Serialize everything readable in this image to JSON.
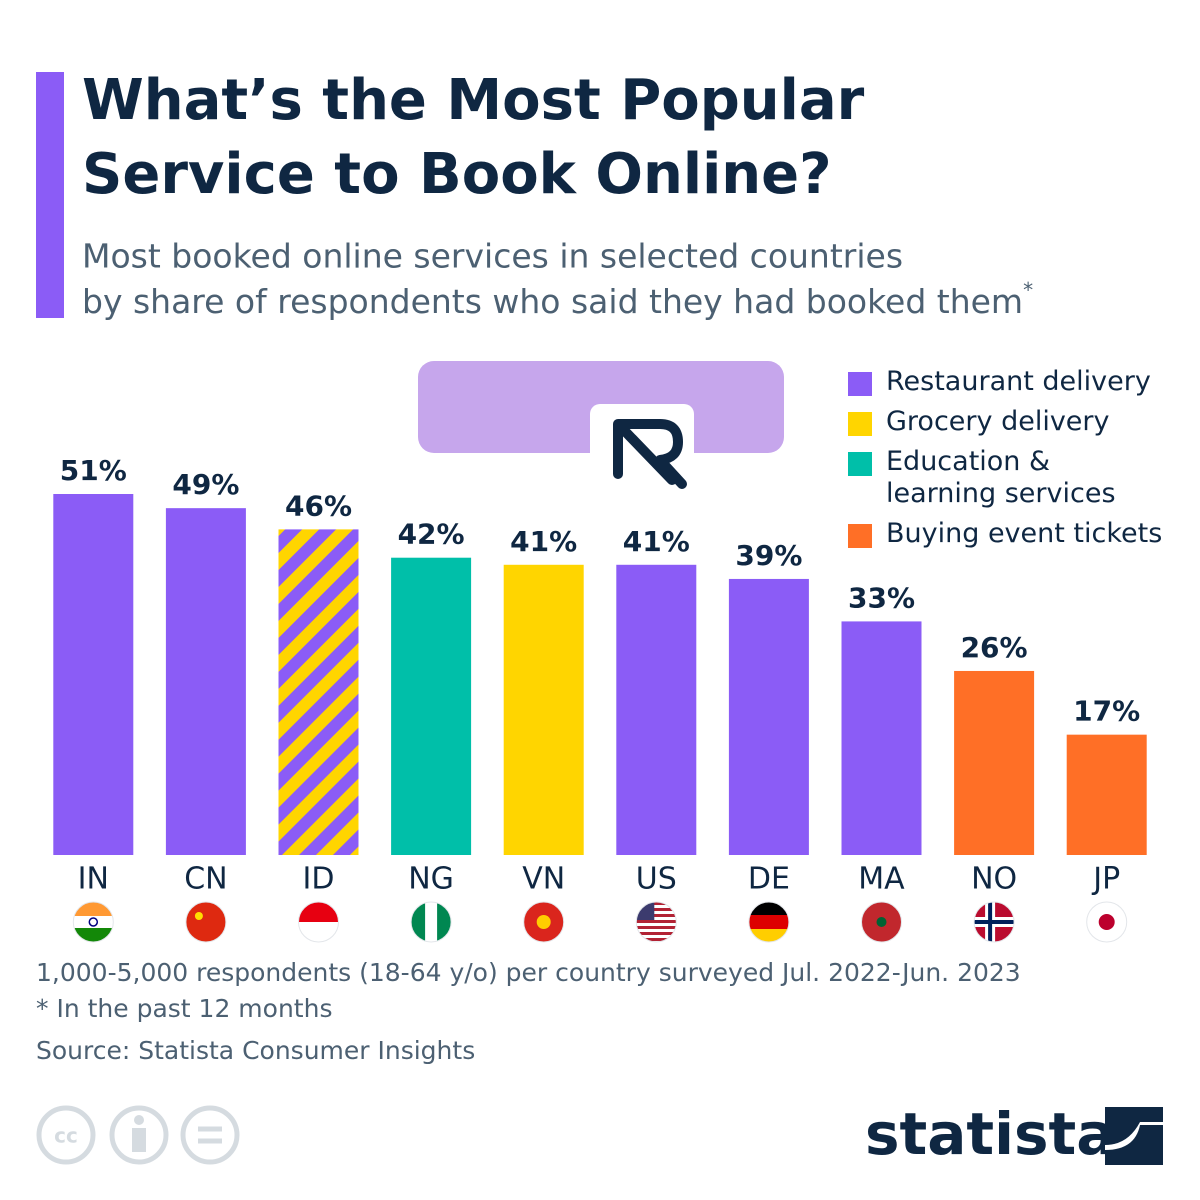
{
  "chart_data": {
    "type": "bar",
    "title": [
      "What’s the Most Popular",
      "Service to Book Online?"
    ],
    "subtitle": [
      "Most booked online services in selected countries",
      "by share of respondents who said they had booked them"
    ],
    "subtitle_mark": "*",
    "categories": [
      "IN",
      "CN",
      "ID",
      "NG",
      "VN",
      "US",
      "DE",
      "MA",
      "NO",
      "JP"
    ],
    "values": [
      51,
      49,
      46,
      42,
      41,
      41,
      39,
      33,
      26,
      17
    ],
    "value_labels": [
      "51%",
      "49%",
      "46%",
      "42%",
      "41%",
      "41%",
      "39%",
      "33%",
      "26%",
      "17%"
    ],
    "bar_colors": [
      [
        "#8b5cf6"
      ],
      [
        "#8b5cf6"
      ],
      [
        "#8b5cf6",
        "#ffd500"
      ],
      [
        "#00bfa9"
      ],
      [
        "#ffd500"
      ],
      [
        "#8b5cf6"
      ],
      [
        "#8b5cf6"
      ],
      [
        "#8b5cf6"
      ],
      [
        "#ff6f26"
      ],
      [
        "#ff6f26"
      ]
    ],
    "ylim": [
      0,
      51
    ],
    "legend": [
      {
        "name": "Restaurant delivery",
        "color": "#8b5cf6"
      },
      {
        "name": "Grocery delivery",
        "color": "#ffd500"
      },
      {
        "name": "Education &\nlearning services",
        "color": "#00bfa9"
      },
      {
        "name": "Buying event tickets",
        "color": "#ff6f26"
      }
    ],
    "notes": [
      "1,000-5,000 respondents (18-64 y/o) per country surveyed Jul. 2022-Jun. 2023",
      "* In the past 12 months"
    ],
    "source": "Source: Statista Consumer Insights",
    "brand": "statista"
  }
}
